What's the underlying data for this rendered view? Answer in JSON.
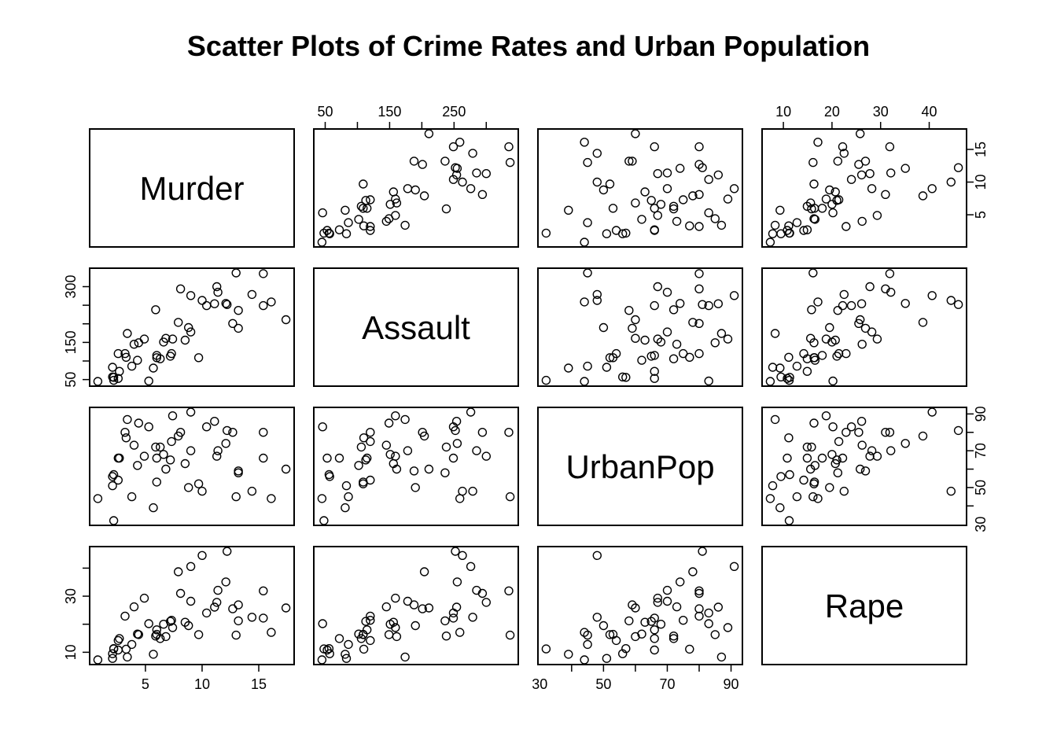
{
  "chart_data": {
    "type": "scatter",
    "title": "Scatter Plots of Crime Rates and Urban Population",
    "variables": [
      "Murder",
      "Assault",
      "UrbanPop",
      "Rape"
    ],
    "ranges": {
      "Murder": [
        0.8,
        17.4
      ],
      "Assault": [
        45,
        337
      ],
      "UrbanPop": [
        32,
        91
      ],
      "Rape": [
        7.3,
        46
      ]
    },
    "ticks": {
      "Murder": [
        5,
        10,
        15
      ],
      "Assault": [
        50,
        100,
        150,
        200,
        250,
        300
      ],
      "UrbanPop": [
        30,
        40,
        50,
        60,
        70,
        80,
        90
      ],
      "Rape": [
        10,
        20,
        30,
        40
      ]
    },
    "tick_labels": {
      "Murder": [
        "5",
        "10",
        "15"
      ],
      "Assault": [
        "50",
        "150",
        "250"
      ],
      "UrbanPop": [
        "30",
        "50",
        "70",
        "90"
      ],
      "Rape": [
        "10",
        "30"
      ],
      "Rape_top": [
        "10",
        "20",
        "30",
        "40"
      ],
      "Murder_right": [
        "5",
        "10",
        "15"
      ],
      "UrbanPop_right": [
        "30",
        "50",
        "70",
        "90"
      ],
      "Assault_left": [
        "50",
        "150",
        "300"
      ]
    },
    "grid": false,
    "legend": "none",
    "observations": {
      "Murder": [
        13.2,
        10.0,
        8.1,
        8.8,
        9.0,
        7.9,
        3.3,
        5.9,
        15.4,
        17.4,
        5.3,
        2.6,
        10.4,
        7.2,
        2.2,
        6.0,
        9.7,
        15.4,
        2.1,
        11.3,
        4.4,
        12.1,
        2.7,
        16.1,
        9.0,
        6.0,
        4.3,
        12.2,
        2.1,
        7.4,
        11.4,
        11.1,
        13.0,
        0.8,
        7.3,
        6.6,
        4.9,
        6.3,
        3.4,
        14.4,
        3.8,
        13.2,
        12.7,
        3.2,
        2.2,
        8.5,
        4.0,
        5.7,
        2.6,
        6.8
      ],
      "Assault": [
        236,
        263,
        294,
        190,
        276,
        204,
        110,
        238,
        335,
        211,
        46,
        120,
        249,
        113,
        56,
        115,
        109,
        249,
        83,
        300,
        149,
        255,
        72,
        259,
        178,
        109,
        102,
        252,
        57,
        159,
        285,
        254,
        337,
        45,
        120,
        151,
        159,
        106,
        174,
        279,
        86,
        188,
        201,
        120,
        48,
        156,
        145,
        81,
        53,
        161
      ],
      "UrbanPop": [
        58,
        48,
        80,
        50,
        91,
        78,
        77,
        72,
        80,
        60,
        83,
        54,
        83,
        65,
        57,
        66,
        52,
        66,
        51,
        67,
        85,
        74,
        66,
        44,
        70,
        53,
        62,
        81,
        56,
        89,
        70,
        86,
        45,
        44,
        75,
        68,
        67,
        72,
        87,
        48,
        45,
        59,
        80,
        80,
        32,
        63,
        73,
        39,
        66,
        60
      ],
      "Rape": [
        21.2,
        44.5,
        31.0,
        19.5,
        40.6,
        38.7,
        11.1,
        15.8,
        31.9,
        25.8,
        20.2,
        14.2,
        24.0,
        21.0,
        11.3,
        18.0,
        16.3,
        22.2,
        7.8,
        27.8,
        16.3,
        35.1,
        14.9,
        17.1,
        28.2,
        16.4,
        16.5,
        46.0,
        9.5,
        18.8,
        32.1,
        26.1,
        16.1,
        7.3,
        21.4,
        20.0,
        29.3,
        14.9,
        8.3,
        22.5,
        12.8,
        26.9,
        25.5,
        22.9,
        11.2,
        20.7,
        26.2,
        9.3,
        10.8,
        15.6
      ]
    }
  }
}
